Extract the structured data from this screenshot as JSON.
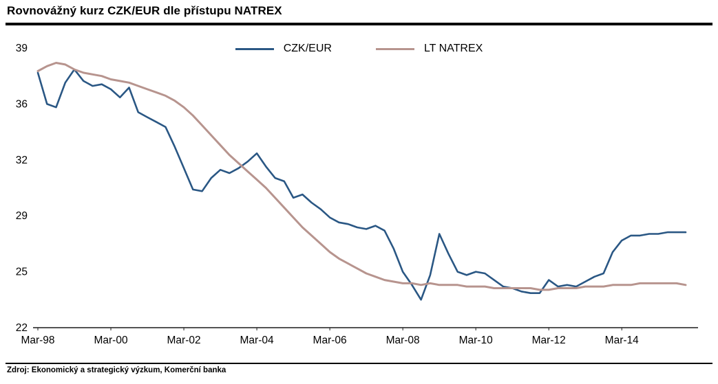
{
  "title": "Rovnovážný kurz CZK/EUR dle přístupu NATREX",
  "source": "Zdroj: Ekonomický a strategický výzkum, Komerční banka",
  "colors": {
    "czk_eur_line": "#2a5784",
    "lt_natrex_line": "#b7948e",
    "axis": "#1a1a1a",
    "text": "#000000",
    "background": "#ffffff"
  },
  "chart_data": {
    "type": "line",
    "title": "Rovnovážný kurz CZK/EUR dle přístupu NATREX",
    "xlabel": "",
    "ylabel": "",
    "ylim": [
      22,
      39
    ],
    "y_tick_labels": [
      "39",
      "36",
      "32",
      "29",
      "25",
      "22"
    ],
    "x_tick_labels": [
      "Mar-98",
      "Mar-00",
      "Mar-02",
      "Mar-04",
      "Mar-06",
      "Mar-08",
      "Mar-10",
      "Mar-12",
      "Mar-14"
    ],
    "x_frequency": "quarterly",
    "x_start": "Mar-98",
    "x_end": "Dec-15",
    "grid": false,
    "legend_position": "top-center",
    "series": [
      {
        "name": "CZK/EUR",
        "color": "#2a5784",
        "values": [
          37.5,
          35.6,
          35.4,
          36.9,
          37.7,
          37.0,
          36.7,
          36.8,
          36.5,
          36.0,
          36.6,
          35.1,
          34.8,
          34.5,
          34.2,
          33.0,
          31.7,
          30.4,
          30.3,
          31.1,
          31.6,
          31.4,
          31.7,
          32.1,
          32.6,
          31.8,
          31.1,
          30.9,
          29.9,
          30.1,
          29.6,
          29.2,
          28.7,
          28.4,
          28.3,
          28.1,
          28.0,
          28.2,
          27.9,
          26.8,
          25.4,
          24.6,
          23.7,
          25.2,
          27.7,
          26.5,
          25.4,
          25.2,
          25.4,
          25.3,
          24.9,
          24.5,
          24.4,
          24.2,
          24.1,
          24.1,
          24.9,
          24.5,
          24.6,
          24.5,
          24.8,
          25.1,
          25.3,
          26.6,
          27.3,
          27.6,
          27.6,
          27.7,
          27.7,
          27.8,
          27.8,
          27.8
        ]
      },
      {
        "name": "LT NATREX",
        "color": "#b7948e",
        "values": [
          37.6,
          37.9,
          38.1,
          38.0,
          37.7,
          37.5,
          37.4,
          37.3,
          37.1,
          37.0,
          36.9,
          36.7,
          36.5,
          36.3,
          36.1,
          35.8,
          35.4,
          34.9,
          34.3,
          33.7,
          33.1,
          32.5,
          32.0,
          31.5,
          31.0,
          30.5,
          29.9,
          29.3,
          28.7,
          28.1,
          27.6,
          27.1,
          26.6,
          26.2,
          25.9,
          25.6,
          25.3,
          25.1,
          24.9,
          24.8,
          24.7,
          24.7,
          24.6,
          24.7,
          24.6,
          24.6,
          24.6,
          24.5,
          24.5,
          24.5,
          24.4,
          24.4,
          24.4,
          24.4,
          24.4,
          24.3,
          24.3,
          24.4,
          24.4,
          24.4,
          24.5,
          24.5,
          24.5,
          24.6,
          24.6,
          24.6,
          24.7,
          24.7,
          24.7,
          24.7,
          24.7,
          24.6
        ]
      }
    ]
  }
}
